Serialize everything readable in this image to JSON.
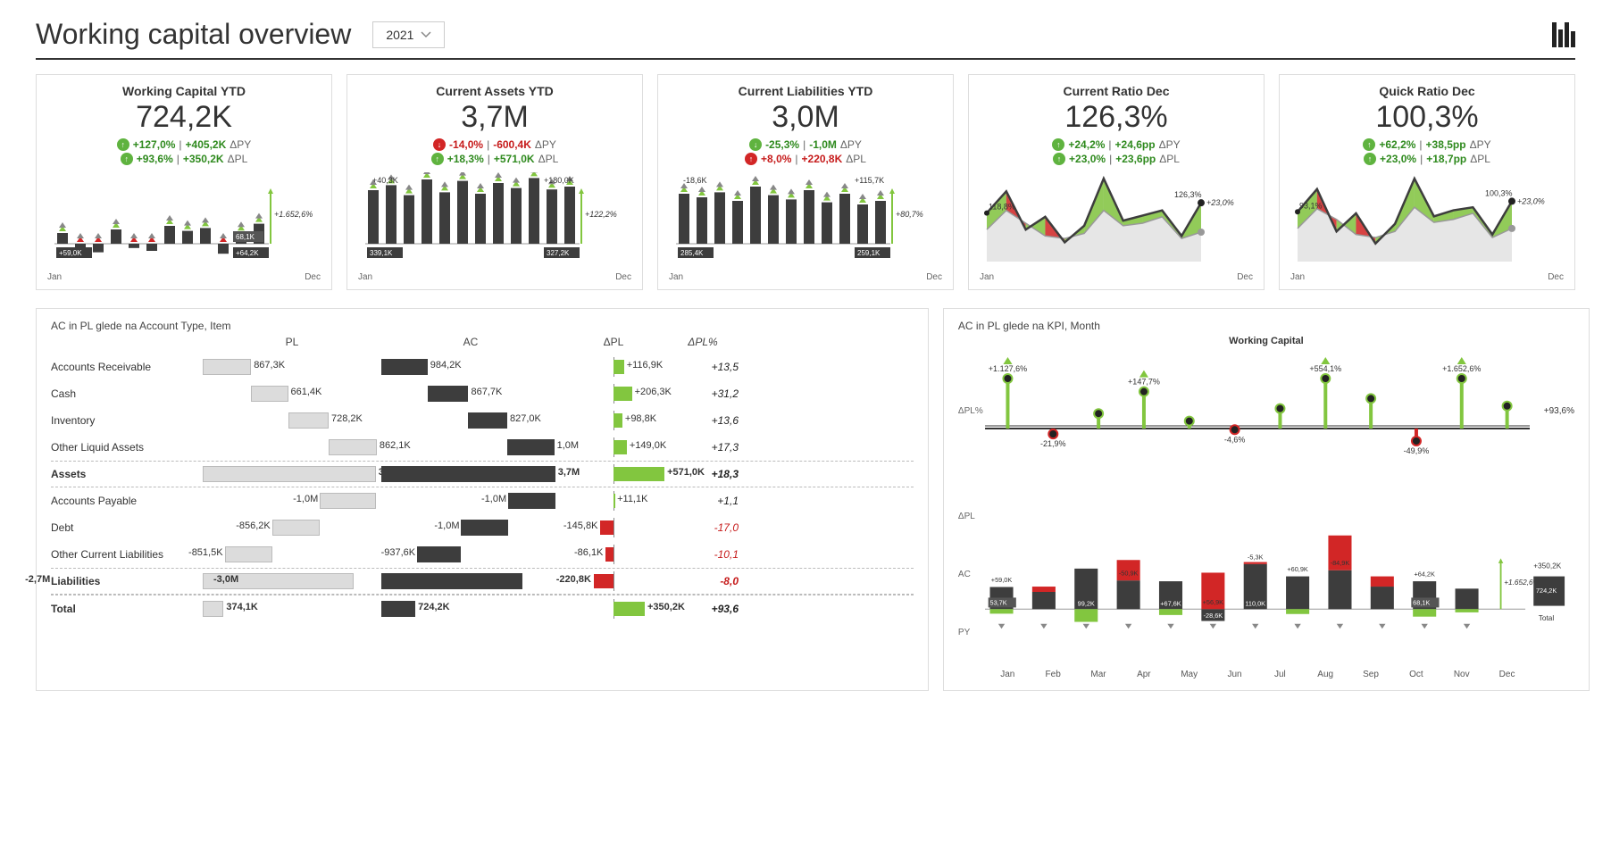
{
  "header": {
    "title": "Working capital overview",
    "year": "2021"
  },
  "colors": {
    "green": "#82c63f",
    "green_dark": "#5fb33f",
    "red": "#d22626",
    "bar_dark": "#3d3d3d",
    "bar_light": "#dcdcdc",
    "area_fill": "#e6e6e6",
    "grid": "#bfbfbf",
    "text": "#333333"
  },
  "months": [
    "Jan",
    "Feb",
    "Mar",
    "Apr",
    "May",
    "Jun",
    "Jul",
    "Aug",
    "Sep",
    "Oct",
    "Nov",
    "Dec"
  ],
  "kpis": [
    {
      "id": "wc",
      "title": "Working Capital YTD",
      "value": "724,2K",
      "delta_py": {
        "dir": "up",
        "color": "green",
        "pct": "+127,0%",
        "abs": "+405,2K",
        "lbl": "ΔPY"
      },
      "delta_pl": {
        "dir": "up",
        "color": "green",
        "pct": "+93,6%",
        "abs": "+350,2K",
        "lbl": "ΔPL"
      },
      "chart_type": "bar_variance",
      "start_label": "+59,0K",
      "end_label": "+64,2K",
      "last_box": "68,1K",
      "side_label": "+1.652,6%",
      "bars": [
        15,
        -8,
        -12,
        20,
        -6,
        -10,
        25,
        18,
        22,
        -14,
        16,
        28
      ]
    },
    {
      "id": "ca",
      "title": "Current Assets YTD",
      "value": "3,7M",
      "delta_py": {
        "dir": "down",
        "color": "red",
        "pct": "-14,0%",
        "abs": "-600,4K",
        "lbl": "ΔPY"
      },
      "delta_pl": {
        "dir": "up",
        "color": "green",
        "pct": "+18,3%",
        "abs": "+571,0K",
        "lbl": "ΔPL"
      },
      "chart_type": "bar_variance",
      "start_label": "339,1K",
      "end_label": "327,2K",
      "top_left": "+40,3K",
      "top_right": "+180,0K",
      "side_label": "+122,2%",
      "bars": [
        75,
        82,
        68,
        90,
        72,
        88,
        70,
        85,
        78,
        92,
        76,
        80
      ]
    },
    {
      "id": "cl",
      "title": "Current Liabilities YTD",
      "value": "3,0M",
      "delta_py": {
        "dir": "down",
        "color": "green",
        "pct": "-25,3%",
        "abs": "-1,0M",
        "lbl": "ΔPY"
      },
      "delta_pl": {
        "dir": "up",
        "color": "red",
        "pct": "+8,0%",
        "abs": "+220,8K",
        "lbl": "ΔPL"
      },
      "chart_type": "bar_variance",
      "start_label": "285,4K",
      "end_label": "259,1K",
      "top_left": "-18,6K",
      "top_right": "+115,7K",
      "side_label": "+80,7%",
      "bars": [
        70,
        65,
        72,
        60,
        80,
        68,
        62,
        75,
        58,
        70,
        55,
        60
      ]
    },
    {
      "id": "cr",
      "title": "Current Ratio Dec",
      "value": "126,3%",
      "delta_py": {
        "dir": "up",
        "color": "green",
        "pct": "+24,2%",
        "abs": "+24,6pp",
        "lbl": "ΔPY"
      },
      "delta_pl": {
        "dir": "up",
        "color": "green",
        "pct": "+23,0%",
        "abs": "+23,6pp",
        "lbl": "ΔPL"
      },
      "chart_type": "area",
      "start_label": "118,8%",
      "end_label": "126,3%",
      "side_label": "+23,0%",
      "series": [
        118,
        135,
        105,
        115,
        95,
        108,
        145,
        112,
        116,
        120,
        100,
        126
      ],
      "ref": [
        105,
        120,
        110,
        100,
        98,
        102,
        120,
        108,
        110,
        115,
        98,
        103
      ]
    },
    {
      "id": "qr",
      "title": "Quick Ratio Dec",
      "value": "100,3%",
      "delta_py": {
        "dir": "up",
        "color": "green",
        "pct": "+62,2%",
        "abs": "+38,5pp",
        "lbl": "ΔPY"
      },
      "delta_pl": {
        "dir": "up",
        "color": "green",
        "pct": "+23,0%",
        "abs": "+18,7pp",
        "lbl": "ΔPL"
      },
      "chart_type": "area",
      "start_label": "93,1%",
      "end_label": "100,3%",
      "side_label": "+23,0%",
      "series": [
        93,
        108,
        80,
        92,
        72,
        85,
        115,
        90,
        94,
        96,
        78,
        100
      ],
      "ref": [
        82,
        95,
        88,
        78,
        76,
        80,
        96,
        86,
        88,
        92,
        76,
        82
      ]
    }
  ],
  "waterfall": {
    "title": "AC in PL glede na Account Type, Item",
    "cols": [
      "PL",
      "AC",
      "ΔPL",
      "ΔPL%"
    ],
    "pl_scale_max": 3200,
    "ac_scale_max": 3800,
    "rows": [
      {
        "label": "Accounts Receivable",
        "pl": "867,3K",
        "pl_v": 867,
        "pl_off": 0,
        "ac": "984,2K",
        "ac_v": 984,
        "ac_off": 0,
        "dpl": "+116,9K",
        "dpl_v": 117,
        "dplp": "+13,5",
        "neg": false
      },
      {
        "label": "Cash",
        "pl": "661,4K",
        "pl_v": 661,
        "pl_off": 867,
        "ac": "867,7K",
        "ac_v": 868,
        "ac_off": 984,
        "dpl": "+206,3K",
        "dpl_v": 206,
        "dplp": "+31,2",
        "neg": false
      },
      {
        "label": "Inventory",
        "pl": "728,2K",
        "pl_v": 728,
        "pl_off": 1528,
        "ac": "827,0K",
        "ac_v": 827,
        "ac_off": 1852,
        "dpl": "+98,8K",
        "dpl_v": 99,
        "dplp": "+13,6",
        "neg": false
      },
      {
        "label": "Other Liquid Assets",
        "pl": "862,1K",
        "pl_v": 862,
        "pl_off": 2256,
        "ac": "1,0M",
        "ac_v": 1000,
        "ac_off": 2679,
        "dpl": "+149,0K",
        "dpl_v": 149,
        "dplp": "+17,3",
        "neg": false
      },
      {
        "label": "Assets",
        "section": true,
        "pl": "3,1M",
        "pl_v": 3100,
        "pl_off": 0,
        "ac": "3,7M",
        "ac_v": 3700,
        "ac_off": 0,
        "dpl": "+571,0K",
        "dpl_v": 571,
        "dplp": "+18,3",
        "neg": false
      },
      {
        "label": "Accounts Payable",
        "pl": "-1,0M",
        "pl_v": -1000,
        "pl_off": 3100,
        "ac": "-1,0M",
        "ac_v": -1000,
        "ac_off": 3700,
        "dpl": "+11,1K",
        "dpl_v": 11,
        "dplp": "+1,1",
        "neg": false
      },
      {
        "label": "Debt",
        "pl": "-856,2K",
        "pl_v": -856,
        "pl_off": 2100,
        "ac": "-1,0M",
        "ac_v": -1000,
        "ac_off": 2700,
        "dpl": "-145,8K",
        "dpl_v": -146,
        "dplp": "-17,0",
        "neg": true
      },
      {
        "label": "Other Current Liabilities",
        "pl": "-851,5K",
        "pl_v": -851,
        "pl_off": 1244,
        "ac": "-937,6K",
        "ac_v": -938,
        "ac_off": 1700,
        "dpl": "-86,1K",
        "dpl_v": -86,
        "dplp": "-10,1",
        "neg": true
      },
      {
        "label": "Liabilities",
        "section": true,
        "pl": "-2,7M",
        "pl_v": -2700,
        "pl_off": 0,
        "ac": "-3,0M",
        "ac_v": -3000,
        "ac_off": 0,
        "dpl": "-220,8K",
        "dpl_v": -221,
        "dplp": "-8,0",
        "neg": true
      },
      {
        "label": "Total",
        "total": true,
        "pl": "374,1K",
        "pl_v": 374,
        "pl_off": 0,
        "ac": "724,2K",
        "ac_v": 724,
        "ac_off": 0,
        "dpl": "+350,2K",
        "dpl_v": 350,
        "dplp": "+93,6",
        "neg": false
      }
    ]
  },
  "right": {
    "title": "AC in PL glede na KPI, Month",
    "subtitle": "Working Capital",
    "lolli_label": "ΔPL%",
    "lollipop": [
      {
        "v": 1127.6,
        "lbl": "+1.127,6%",
        "top": true
      },
      {
        "v": -21.9,
        "lbl": "-21,9%"
      },
      {
        "v": 60,
        "lbl": ""
      },
      {
        "v": 147.7,
        "lbl": "+147,7%",
        "top": true
      },
      {
        "v": 30,
        "lbl": ""
      },
      {
        "v": -4.6,
        "lbl": "-4,6%"
      },
      {
        "v": 80,
        "lbl": ""
      },
      {
        "v": 554.1,
        "lbl": "+554,1%",
        "top": true
      },
      {
        "v": 120,
        "lbl": ""
      },
      {
        "v": -49.9,
        "lbl": "-49,9%"
      },
      {
        "v": 1652.6,
        "lbl": "+1.652,6%",
        "top": true
      },
      {
        "v": 90,
        "lbl": ""
      }
    ],
    "lolli_side": "+93,6%",
    "bars": {
      "first_box": "53,7K",
      "last_box": "68,1K",
      "side_label": "+1.652,6%",
      "total_label": "+350,2K",
      "total": "724,2K",
      "labels_top": [
        "+59,0K",
        "",
        "",
        "-50,9K",
        "",
        "+56,9K",
        "-5,3K",
        "+60,9K",
        "-84,9K",
        "",
        "+64,2K",
        ""
      ],
      "internal": [
        "",
        "",
        "99,2K",
        "",
        "+67,6K",
        "-28,6K",
        "110,0K",
        "",
        "",
        "",
        "",
        ""
      ],
      "ac": [
        54,
        42,
        99,
        70,
        68,
        -29,
        110,
        80,
        95,
        55,
        68,
        50
      ],
      "pl": [
        40,
        55,
        60,
        120,
        50,
        60,
        115,
        65,
        180,
        80,
        45,
        40
      ],
      "delta": [
        14,
        -13,
        39,
        -50,
        18,
        -89,
        -5,
        15,
        -85,
        -25,
        23,
        10
      ]
    }
  }
}
